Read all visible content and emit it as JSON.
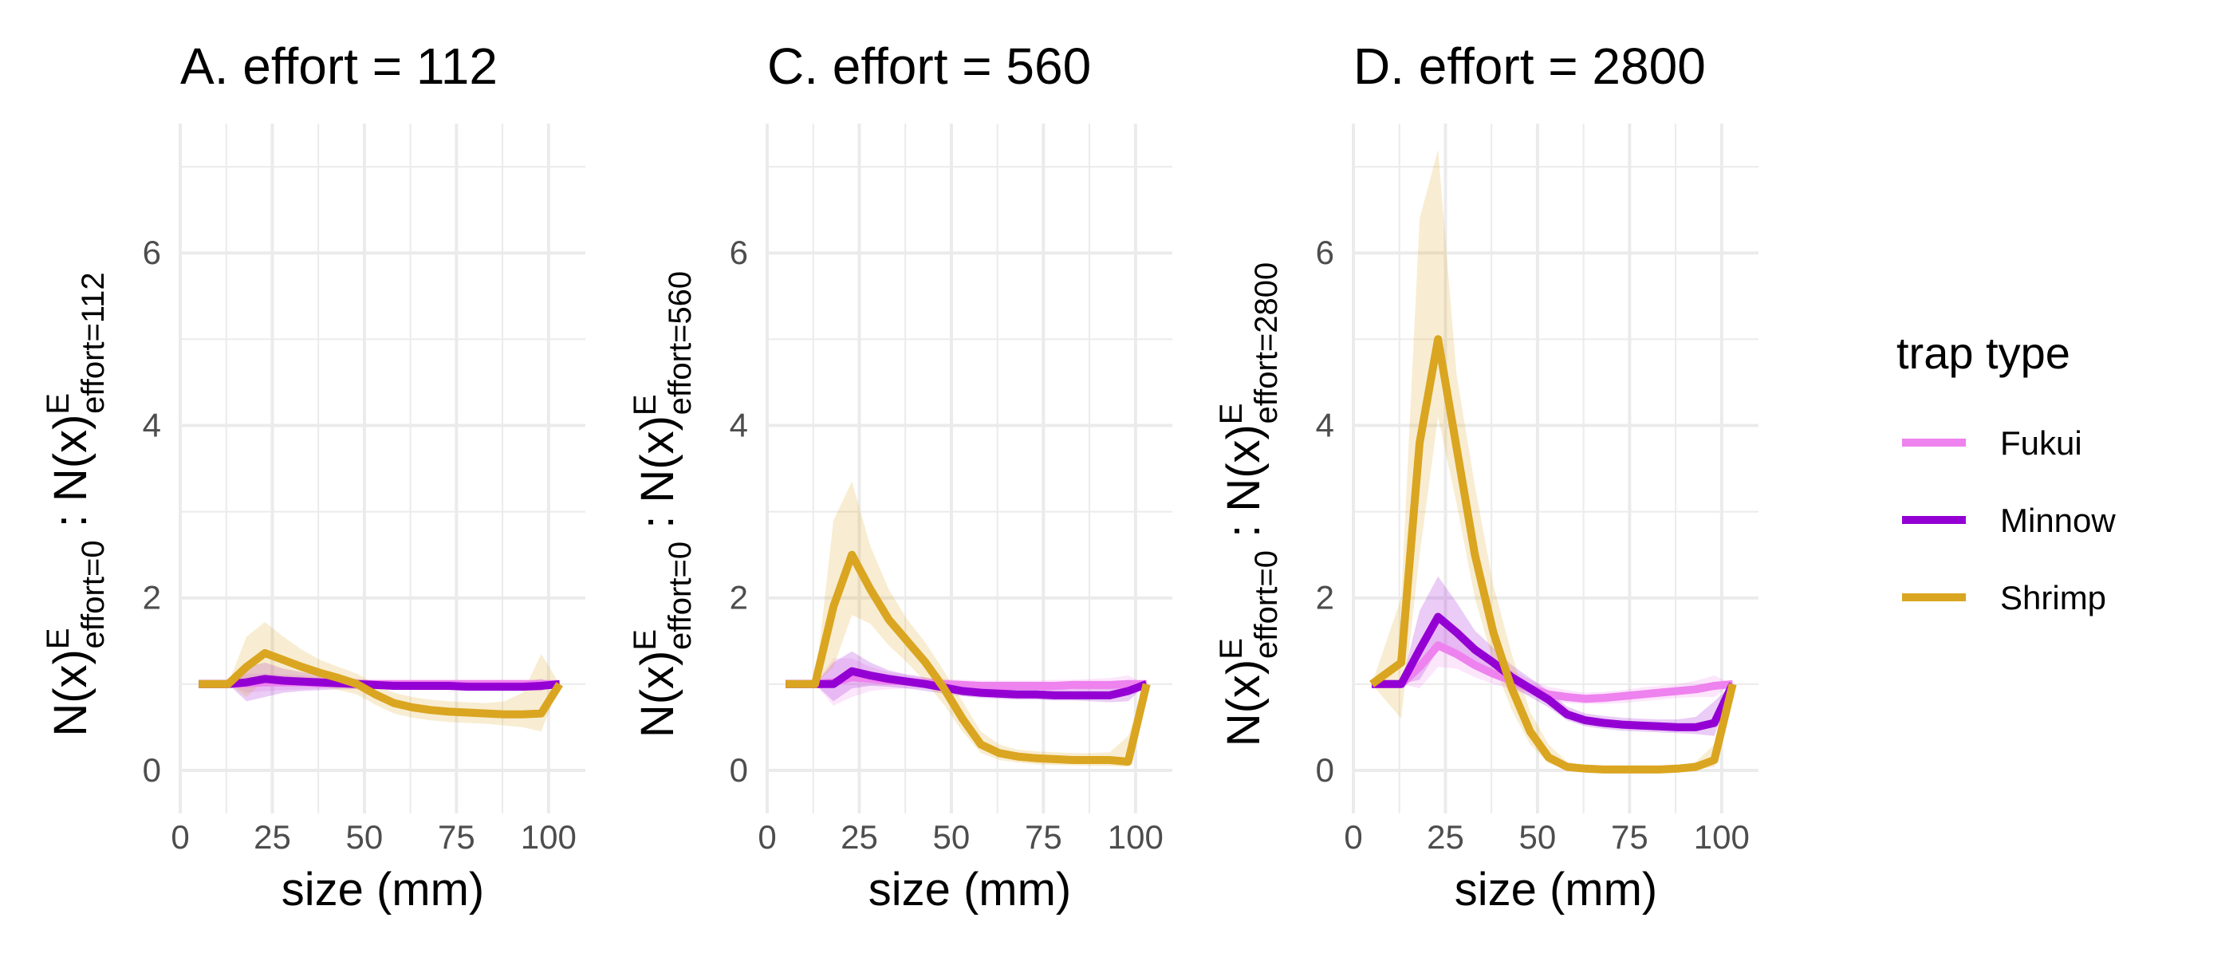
{
  "chart_data": [
    {
      "type": "line",
      "title": "A. effort = 112",
      "xlabel": "size (mm)",
      "ylabel": {
        "base": "N(x)",
        "super": "E",
        "sub_left": "effort=0",
        "sep": " : ",
        "sub_right": "effort=112"
      },
      "xlim": [
        0,
        110
      ],
      "ylim": [
        -0.5,
        7.5
      ],
      "xticks": [
        0,
        25,
        50,
        75,
        100
      ],
      "yticks": [
        0,
        2,
        4,
        6
      ],
      "grid": true,
      "series": [
        {
          "name": "Fukui",
          "x": [
            5,
            13,
            18,
            23,
            28,
            33,
            38,
            43,
            48,
            53,
            58,
            63,
            68,
            73,
            78,
            83,
            88,
            93,
            98,
            103
          ],
          "values": [
            1,
            1,
            1.01,
            1.02,
            1.02,
            1.02,
            1.01,
            1.01,
            1.0,
            1.0,
            1.0,
            1.0,
            1.0,
            1.0,
            1.0,
            1.0,
            1.0,
            1.0,
            1.0,
            1.0
          ],
          "lower": [
            1,
            1,
            0.9,
            0.92,
            0.93,
            0.94,
            0.95,
            0.96,
            0.96,
            0.96,
            0.96,
            0.96,
            0.96,
            0.96,
            0.96,
            0.96,
            0.96,
            0.96,
            0.96,
            1
          ],
          "upper": [
            1,
            1,
            1.12,
            1.12,
            1.11,
            1.1,
            1.08,
            1.06,
            1.05,
            1.05,
            1.05,
            1.05,
            1.05,
            1.05,
            1.05,
            1.05,
            1.05,
            1.05,
            1.05,
            1
          ]
        },
        {
          "name": "Minnow",
          "x": [
            5,
            13,
            18,
            23,
            28,
            33,
            38,
            43,
            48,
            53,
            58,
            63,
            68,
            73,
            78,
            83,
            88,
            93,
            98,
            103
          ],
          "values": [
            1,
            1,
            1.02,
            1.06,
            1.04,
            1.03,
            1.02,
            1.01,
            1.0,
            0.99,
            0.98,
            0.98,
            0.98,
            0.98,
            0.97,
            0.97,
            0.97,
            0.97,
            0.98,
            1
          ],
          "lower": [
            1,
            1,
            0.8,
            0.85,
            0.9,
            0.92,
            0.93,
            0.94,
            0.94,
            0.94,
            0.94,
            0.93,
            0.93,
            0.93,
            0.93,
            0.93,
            0.93,
            0.93,
            0.92,
            1
          ],
          "upper": [
            1,
            1,
            1.2,
            1.25,
            1.18,
            1.14,
            1.1,
            1.08,
            1.06,
            1.04,
            1.03,
            1.03,
            1.03,
            1.03,
            1.02,
            1.02,
            1.02,
            1.03,
            1.06,
            1
          ]
        },
        {
          "name": "Shrimp",
          "x": [
            5,
            13,
            18,
            23,
            28,
            33,
            38,
            43,
            48,
            53,
            58,
            63,
            68,
            73,
            78,
            83,
            88,
            93,
            98,
            103
          ],
          "values": [
            1,
            1,
            1.2,
            1.36,
            1.28,
            1.2,
            1.13,
            1.07,
            1.0,
            0.88,
            0.78,
            0.73,
            0.7,
            0.68,
            0.67,
            0.66,
            0.65,
            0.65,
            0.66,
            1
          ],
          "lower": [
            1,
            1,
            0.85,
            1.05,
            1.05,
            1.02,
            0.98,
            0.93,
            0.88,
            0.76,
            0.66,
            0.61,
            0.58,
            0.56,
            0.55,
            0.54,
            0.52,
            0.5,
            0.45,
            1
          ],
          "upper": [
            1,
            1,
            1.55,
            1.72,
            1.55,
            1.4,
            1.28,
            1.2,
            1.12,
            1.0,
            0.9,
            0.85,
            0.82,
            0.8,
            0.79,
            0.78,
            0.8,
            0.9,
            1.35,
            1
          ]
        }
      ]
    },
    {
      "type": "line",
      "title": "C. effort = 560",
      "xlabel": "size (mm)",
      "ylabel": {
        "base": "N(x)",
        "super": "E",
        "sub_left": "effort=0",
        "sep": " : ",
        "sub_right": "effort=560"
      },
      "xlim": [
        0,
        110
      ],
      "ylim": [
        -0.5,
        7.5
      ],
      "xticks": [
        0,
        25,
        50,
        75,
        100
      ],
      "yticks": [
        0,
        2,
        4,
        6
      ],
      "grid": true,
      "series": [
        {
          "name": "Fukui",
          "x": [
            5,
            13,
            18,
            23,
            28,
            33,
            38,
            43,
            48,
            53,
            58,
            63,
            68,
            73,
            78,
            83,
            88,
            93,
            98,
            103
          ],
          "values": [
            1,
            1,
            1.02,
            1.08,
            1.06,
            1.04,
            1.03,
            1.01,
            1.0,
            0.99,
            0.98,
            0.98,
            0.98,
            0.98,
            0.98,
            0.99,
            0.99,
            0.99,
            1.0,
            1
          ],
          "lower": [
            1,
            1,
            0.75,
            0.85,
            0.92,
            0.94,
            0.95,
            0.95,
            0.94,
            0.93,
            0.92,
            0.92,
            0.92,
            0.92,
            0.92,
            0.93,
            0.93,
            0.93,
            0.92,
            1
          ],
          "upper": [
            1,
            1,
            1.3,
            1.3,
            1.2,
            1.14,
            1.11,
            1.07,
            1.06,
            1.05,
            1.04,
            1.04,
            1.04,
            1.04,
            1.05,
            1.05,
            1.06,
            1.07,
            1.1,
            1
          ]
        },
        {
          "name": "Minnow",
          "x": [
            5,
            13,
            18,
            23,
            28,
            33,
            38,
            43,
            48,
            53,
            58,
            63,
            68,
            73,
            78,
            83,
            88,
            93,
            98,
            103
          ],
          "values": [
            1,
            1,
            1.0,
            1.15,
            1.1,
            1.06,
            1.03,
            1.0,
            0.96,
            0.92,
            0.9,
            0.89,
            0.88,
            0.88,
            0.87,
            0.87,
            0.87,
            0.87,
            0.92,
            1
          ],
          "lower": [
            1,
            1,
            0.8,
            0.95,
            0.98,
            0.97,
            0.95,
            0.92,
            0.89,
            0.86,
            0.84,
            0.83,
            0.82,
            0.82,
            0.81,
            0.81,
            0.8,
            0.79,
            0.8,
            1
          ],
          "upper": [
            1,
            1,
            1.25,
            1.38,
            1.25,
            1.16,
            1.11,
            1.08,
            1.03,
            0.98,
            0.96,
            0.95,
            0.94,
            0.94,
            0.94,
            0.94,
            0.95,
            0.97,
            1.05,
            1
          ]
        },
        {
          "name": "Shrimp",
          "x": [
            5,
            13,
            18,
            23,
            28,
            33,
            38,
            43,
            48,
            53,
            58,
            63,
            68,
            73,
            78,
            83,
            88,
            93,
            98,
            103
          ],
          "values": [
            1,
            1,
            1.9,
            2.5,
            2.1,
            1.75,
            1.5,
            1.25,
            0.95,
            0.6,
            0.3,
            0.2,
            0.16,
            0.14,
            0.13,
            0.12,
            0.12,
            0.12,
            0.1,
            1
          ],
          "lower": [
            1,
            1,
            1.2,
            1.8,
            1.7,
            1.45,
            1.25,
            1.02,
            0.76,
            0.45,
            0.2,
            0.12,
            0.09,
            0.07,
            0.06,
            0.06,
            0.05,
            0.05,
            0.04,
            1
          ],
          "upper": [
            1,
            1,
            2.9,
            3.35,
            2.6,
            2.1,
            1.75,
            1.48,
            1.15,
            0.8,
            0.45,
            0.3,
            0.24,
            0.22,
            0.21,
            0.2,
            0.2,
            0.21,
            0.4,
            1
          ]
        }
      ]
    },
    {
      "type": "line",
      "title": "D. effort = 2800",
      "xlabel": "size (mm)",
      "ylabel": {
        "base": "N(x)",
        "super": "E",
        "sub_left": "effort=0",
        "sep": " : ",
        "sub_right": "effort=2800"
      },
      "xlim": [
        0,
        110
      ],
      "ylim": [
        -0.5,
        7.5
      ],
      "xticks": [
        0,
        25,
        50,
        75,
        100
      ],
      "yticks": [
        0,
        2,
        4,
        6
      ],
      "grid": true,
      "series": [
        {
          "name": "Fukui",
          "x": [
            5,
            13,
            18,
            23,
            28,
            33,
            38,
            43,
            48,
            53,
            58,
            63,
            68,
            73,
            78,
            83,
            88,
            93,
            98,
            103
          ],
          "values": [
            1,
            1,
            1.2,
            1.45,
            1.35,
            1.22,
            1.12,
            1.04,
            0.95,
            0.88,
            0.85,
            0.83,
            0.84,
            0.86,
            0.88,
            0.9,
            0.92,
            0.94,
            0.98,
            1
          ],
          "lower": [
            1,
            1,
            0.95,
            1.2,
            1.18,
            1.08,
            1.0,
            0.94,
            0.87,
            0.81,
            0.78,
            0.77,
            0.77,
            0.78,
            0.8,
            0.82,
            0.84,
            0.85,
            0.85,
            1
          ],
          "upper": [
            1,
            1,
            1.45,
            1.75,
            1.6,
            1.42,
            1.27,
            1.16,
            1.05,
            0.97,
            0.93,
            0.9,
            0.91,
            0.93,
            0.96,
            0.98,
            1.0,
            1.04,
            1.1,
            1
          ]
        },
        {
          "name": "Minnow",
          "x": [
            5,
            13,
            18,
            23,
            28,
            33,
            38,
            43,
            48,
            53,
            58,
            63,
            68,
            73,
            78,
            83,
            88,
            93,
            98,
            103
          ],
          "values": [
            1,
            1,
            1.4,
            1.78,
            1.6,
            1.4,
            1.25,
            1.08,
            0.95,
            0.82,
            0.65,
            0.58,
            0.55,
            0.53,
            0.52,
            0.51,
            0.5,
            0.5,
            0.55,
            1
          ],
          "lower": [
            1,
            1,
            1.05,
            1.4,
            1.35,
            1.22,
            1.1,
            0.97,
            0.85,
            0.73,
            0.58,
            0.51,
            0.48,
            0.46,
            0.45,
            0.44,
            0.43,
            0.42,
            0.4,
            1
          ],
          "upper": [
            1,
            1,
            1.85,
            2.25,
            1.95,
            1.62,
            1.42,
            1.22,
            1.07,
            0.92,
            0.74,
            0.66,
            0.63,
            0.61,
            0.6,
            0.59,
            0.59,
            0.62,
            0.8,
            1
          ]
        },
        {
          "name": "Shrimp",
          "x": [
            5,
            13,
            18,
            23,
            28,
            33,
            38,
            43,
            48,
            53,
            58,
            63,
            68,
            73,
            78,
            83,
            88,
            93,
            98,
            103
          ],
          "values": [
            1,
            1.25,
            3.8,
            5.0,
            3.75,
            2.5,
            1.6,
            0.95,
            0.45,
            0.15,
            0.04,
            0.02,
            0.01,
            0.01,
            0.01,
            0.01,
            0.02,
            0.04,
            0.12,
            1
          ],
          "lower": [
            1,
            0.6,
            2.5,
            4.1,
            3.1,
            2.0,
            1.25,
            0.7,
            0.3,
            0.08,
            0.01,
            0.0,
            0.0,
            0.0,
            0.0,
            0.0,
            0.0,
            0.01,
            0.04,
            1
          ],
          "upper": [
            1,
            2.0,
            6.4,
            7.2,
            4.6,
            3.3,
            2.15,
            1.35,
            0.68,
            0.3,
            0.1,
            0.05,
            0.03,
            0.03,
            0.03,
            0.03,
            0.05,
            0.1,
            0.3,
            1
          ]
        }
      ]
    }
  ],
  "legend": {
    "title": "trap type",
    "items": [
      {
        "label": "Fukui",
        "color": "#EE82EE"
      },
      {
        "label": "Minnow",
        "color": "#9400D3"
      },
      {
        "label": "Shrimp",
        "color": "#DAA520"
      }
    ]
  },
  "colors": {
    "Fukui": "#EE82EE",
    "Minnow": "#9400D3",
    "Shrimp": "#DAA520",
    "grid": "#EBEBEB"
  }
}
